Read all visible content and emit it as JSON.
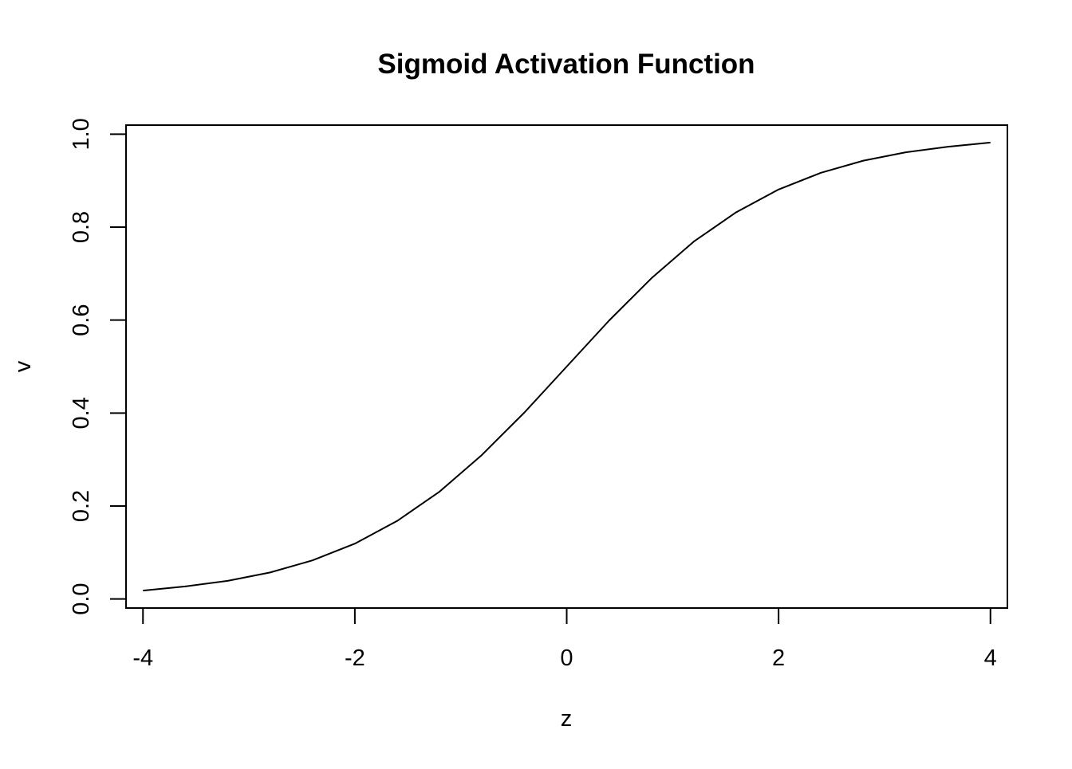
{
  "chart_data": {
    "type": "line",
    "title": "Sigmoid Activation Function",
    "xlabel": "z",
    "ylabel": "v",
    "xlim": [
      -4.16,
      4.16
    ],
    "ylim": [
      -0.0195,
      1.0195
    ],
    "x_ticks": [
      {
        "value": -4,
        "label": "-4"
      },
      {
        "value": -2,
        "label": "-2"
      },
      {
        "value": 0,
        "label": "0"
      },
      {
        "value": 2,
        "label": "2"
      },
      {
        "value": 4,
        "label": "4"
      }
    ],
    "y_ticks": [
      {
        "value": 0.0,
        "label": "0.0"
      },
      {
        "value": 0.2,
        "label": "0.2"
      },
      {
        "value": 0.4,
        "label": "0.4"
      },
      {
        "value": 0.6,
        "label": "0.6"
      },
      {
        "value": 0.8,
        "label": "0.8"
      },
      {
        "value": 1.0,
        "label": "1.0"
      }
    ],
    "grid": false,
    "series": [
      {
        "color": "#000000",
        "x": [
          -4.0,
          -3.6,
          -3.2,
          -2.8,
          -2.4,
          -2.0,
          -1.6,
          -1.2,
          -0.8,
          -0.4,
          0.0,
          0.4,
          0.8,
          1.2,
          1.6,
          2.0,
          2.4,
          2.8,
          3.2,
          3.6,
          4.0
        ],
        "y": [
          0.018,
          0.027,
          0.039,
          0.057,
          0.083,
          0.119,
          0.168,
          0.231,
          0.31,
          0.401,
          0.5,
          0.599,
          0.69,
          0.769,
          0.832,
          0.881,
          0.917,
          0.943,
          0.961,
          0.973,
          0.982
        ]
      }
    ]
  }
}
